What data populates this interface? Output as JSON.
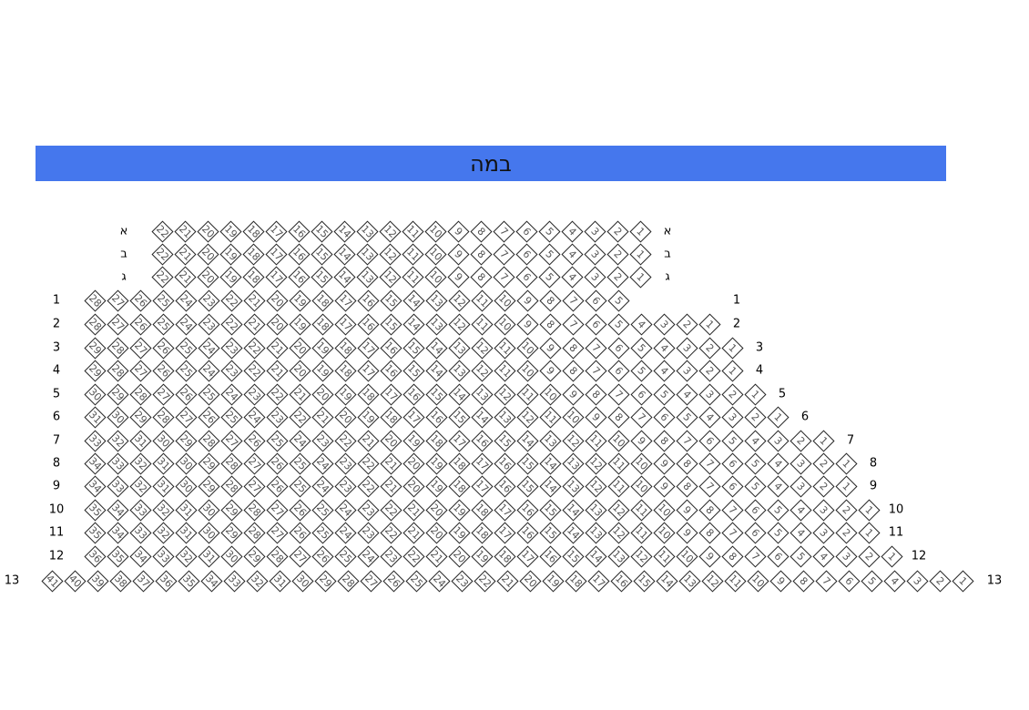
{
  "stage": {
    "label": "במה",
    "color": "#4577ed"
  },
  "rows": [
    {
      "label": "א",
      "seat_max": 22,
      "seat_min": 1
    },
    {
      "label": "ב",
      "seat_max": 22,
      "seat_min": 1
    },
    {
      "label": "ג",
      "seat_max": 22,
      "seat_min": 1
    },
    {
      "label": "1",
      "seat_max": 28,
      "seat_min": 5
    },
    {
      "label": "2",
      "seat_max": 28,
      "seat_min": 1
    },
    {
      "label": "3",
      "seat_max": 29,
      "seat_min": 1
    },
    {
      "label": "4",
      "seat_max": 29,
      "seat_min": 1
    },
    {
      "label": "5",
      "seat_max": 30,
      "seat_min": 1
    },
    {
      "label": "6",
      "seat_max": 31,
      "seat_min": 1
    },
    {
      "label": "7",
      "seat_max": 33,
      "seat_min": 1
    },
    {
      "label": "8",
      "seat_max": 34,
      "seat_min": 1
    },
    {
      "label": "9",
      "seat_max": 34,
      "seat_min": 1
    },
    {
      "label": "10",
      "seat_max": 35,
      "seat_min": 1
    },
    {
      "label": "11",
      "seat_max": 35,
      "seat_min": 1
    },
    {
      "label": "12",
      "seat_max": 36,
      "seat_min": 1
    },
    {
      "label": "13",
      "seat_max": 41,
      "seat_min": 1
    }
  ]
}
